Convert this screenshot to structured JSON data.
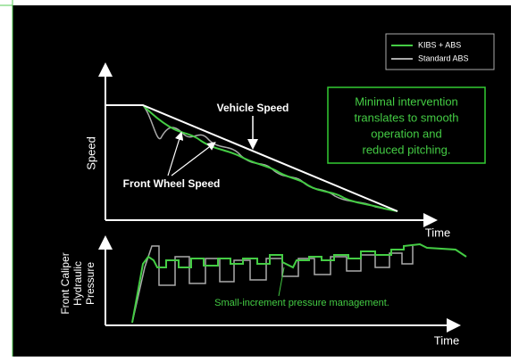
{
  "legend": {
    "items": [
      "KIBS + ABS",
      "Standard ABS"
    ]
  },
  "speed_chart": {
    "y_label": "Speed",
    "x_label": "Time",
    "vehicle_label": "Vehicle Speed",
    "wheel_label": "Front Wheel Speed"
  },
  "callout": {
    "lines": [
      "Minimal intervention",
      "translates to smooth",
      "operation and",
      "reduced pitching."
    ]
  },
  "pressure_chart": {
    "y_label": [
      "Front Caliper",
      "Hydraulic",
      "Pressure"
    ],
    "x_label": "Time",
    "note": "Small-increment pressure management."
  }
}
